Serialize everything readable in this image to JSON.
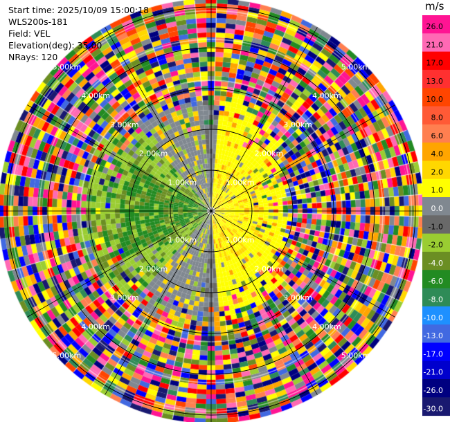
{
  "header": {
    "start_time": "Start time: 2025/10/09 15:00:18",
    "instrument": "WLS200s-181",
    "field": "Field: VEL",
    "elevation": "Elevation(deg): 35.00",
    "nrays": "NRays: 120"
  },
  "chart_data": {
    "type": "heatmap",
    "projection": "polar-ppi",
    "field": "VEL",
    "units": "m/s",
    "nrays": 120,
    "range_rings_km": [
      1,
      2,
      3,
      4,
      5
    ],
    "range_ring_labels": [
      "1.00km",
      "2.00km",
      "3.00km",
      "4.00km",
      "5.00km"
    ],
    "colorbar": {
      "label": "m/s",
      "ticks": [
        "26.0",
        "21.0",
        "17.0",
        "13.0",
        "10.0",
        "8.0",
        "6.0",
        "4.0",
        "2.0",
        "1.0",
        "0.0",
        "-1.0",
        "-2.0",
        "-4.0",
        "-6.0",
        "-8.0",
        "-10.0",
        "-13.0",
        "-17.0",
        "-21.0",
        "-26.0",
        "-30.0"
      ],
      "colors": [
        "#ff1493",
        "#ff69b4",
        "#ff0000",
        "#ff3030",
        "#ff4500",
        "#ff5a36",
        "#ff7f50",
        "#ffa500",
        "#ffd700",
        "#ffff00",
        "#808890",
        "#696969",
        "#9acd32",
        "#6b8e23",
        "#228b22",
        "#2e8b57",
        "#1e90ff",
        "#4169e1",
        "#0000ff",
        "#0000cd",
        "#000080",
        "#191970"
      ]
    }
  }
}
